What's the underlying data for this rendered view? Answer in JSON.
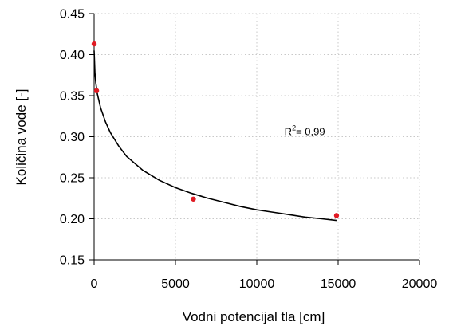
{
  "chart_data": {
    "type": "scatter",
    "title": "",
    "xlabel": "Vodni potencijal tla [cm]",
    "ylabel": "Količina vode [-]",
    "xlim": [
      0,
      20000
    ],
    "ylim": [
      0.15,
      0.45
    ],
    "x_ticks": [
      0,
      5000,
      10000,
      15000,
      20000
    ],
    "x_tick_labels": [
      "0",
      "5000",
      "10000",
      "15000",
      "20000"
    ],
    "y_ticks": [
      0.15,
      0.2,
      0.25,
      0.3,
      0.35,
      0.4,
      0.45
    ],
    "y_tick_labels": [
      "0.15",
      "0.20",
      "0.25",
      "0.30",
      "0.35",
      "0.40",
      "0.45"
    ],
    "grid": true,
    "series": [
      {
        "type": "scatter",
        "color": "#e01b24",
        "points": [
          {
            "x": 0,
            "y": 0.413
          },
          {
            "x": 150,
            "y": 0.356
          },
          {
            "x": 6100,
            "y": 0.224
          },
          {
            "x": 14900,
            "y": 0.204
          }
        ]
      },
      {
        "type": "line",
        "color": "#000000",
        "points": [
          {
            "x": 0,
            "y": 0.405
          },
          {
            "x": 50,
            "y": 0.378
          },
          {
            "x": 100,
            "y": 0.366
          },
          {
            "x": 200,
            "y": 0.352
          },
          {
            "x": 400,
            "y": 0.335
          },
          {
            "x": 700,
            "y": 0.318
          },
          {
            "x": 1000,
            "y": 0.305
          },
          {
            "x": 1500,
            "y": 0.289
          },
          {
            "x": 2000,
            "y": 0.276
          },
          {
            "x": 3000,
            "y": 0.259
          },
          {
            "x": 4000,
            "y": 0.247
          },
          {
            "x": 5000,
            "y": 0.238
          },
          {
            "x": 6000,
            "y": 0.231
          },
          {
            "x": 7000,
            "y": 0.225
          },
          {
            "x": 8000,
            "y": 0.22
          },
          {
            "x": 9000,
            "y": 0.215
          },
          {
            "x": 10000,
            "y": 0.211
          },
          {
            "x": 11000,
            "y": 0.208
          },
          {
            "x": 12000,
            "y": 0.205
          },
          {
            "x": 13000,
            "y": 0.202
          },
          {
            "x": 14000,
            "y": 0.2
          },
          {
            "x": 14900,
            "y": 0.198
          }
        ]
      }
    ],
    "annotation": {
      "prefix": "R",
      "superscript": "2",
      "suffix": "= 0,99",
      "x": 11700,
      "y": 0.302
    }
  }
}
